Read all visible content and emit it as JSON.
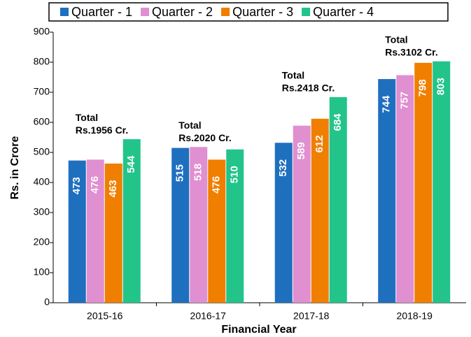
{
  "chart_data": {
    "type": "bar",
    "categories": [
      "2015-16",
      "2016-17",
      "2017-18",
      "2018-19"
    ],
    "series": [
      {
        "name": "Quarter - 1",
        "color": "#1f6fbf",
        "values": [
          473,
          515,
          532,
          744
        ]
      },
      {
        "name": "Quarter - 2",
        "color": "#e08fd0",
        "values": [
          476,
          518,
          589,
          757
        ]
      },
      {
        "name": "Quarter - 3",
        "color": "#f07f00",
        "values": [
          463,
          476,
          612,
          798
        ]
      },
      {
        "name": "Quarter - 4",
        "color": "#22c48a",
        "values": [
          544,
          510,
          684,
          803
        ]
      }
    ],
    "ylim": [
      0,
      900
    ],
    "yticks": [
      0,
      100,
      200,
      300,
      400,
      500,
      600,
      700,
      800,
      900
    ],
    "xlabel": "Financial Year",
    "ylabel": "Rs. in Crore",
    "annotations": [
      {
        "category": "2015-16",
        "lines": [
          "Total",
          "Rs.1956 Cr."
        ]
      },
      {
        "category": "2016-17",
        "lines": [
          "Total",
          "Rs.2020 Cr."
        ]
      },
      {
        "category": "2017-18",
        "lines": [
          "Total",
          "Rs.2418 Cr."
        ]
      },
      {
        "category": "2018-19",
        "lines": [
          "Total",
          "Rs.3102 Cr."
        ]
      }
    ],
    "legend": "top"
  }
}
